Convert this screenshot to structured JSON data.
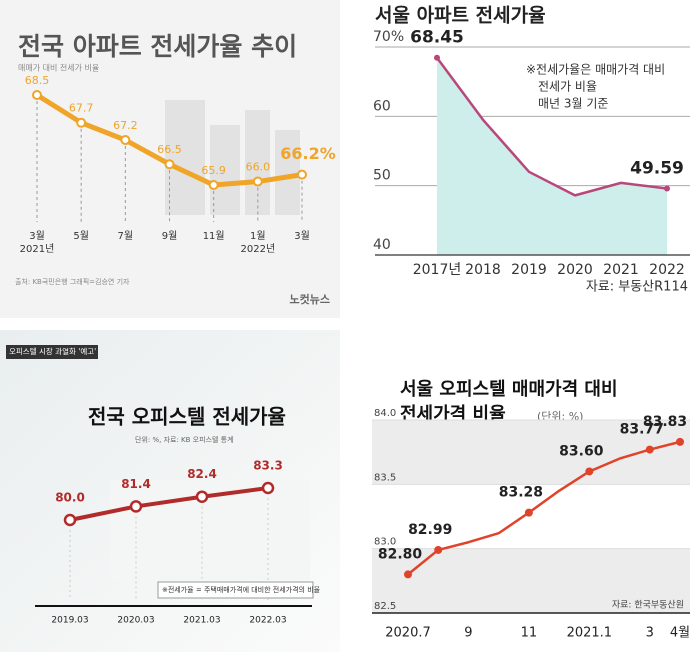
{
  "chart_data": [
    {
      "type": "line",
      "title": "전국 아파트 전세가율 추이",
      "subtitle": "매매가 대비 전세가 비율",
      "categories": [
        "3월",
        "5월",
        "7월",
        "9월",
        "11월",
        "1월",
        "3월"
      ],
      "category_years": [
        "2021년",
        null,
        null,
        null,
        null,
        "2022년",
        null
      ],
      "values": [
        68.5,
        67.7,
        67.2,
        66.5,
        65.9,
        66.0,
        66.2
      ],
      "value_labels": [
        "68.5",
        "67.7",
        "67.2",
        "66.5",
        "65.9",
        "66.0",
        "66.2%"
      ],
      "color": "#f0a428",
      "source": "출처: KB국민은행  그래픽=김승연 기자",
      "brand": "노컷뉴스"
    },
    {
      "type": "area",
      "title": "서울 아파트 전세가율",
      "categories": [
        "2017년",
        "2018",
        "2019",
        "2020",
        "2021",
        "2022"
      ],
      "values": [
        68.45,
        59.5,
        52.0,
        48.6,
        50.4,
        49.59
      ],
      "value_labels": [
        "68.45",
        null,
        null,
        null,
        null,
        "49.59"
      ],
      "ylim": [
        40,
        70
      ],
      "yticks": [
        40,
        50,
        60,
        {
          "value": 70,
          "label": "70%"
        }
      ],
      "grid": true,
      "color": "#b8487c",
      "fill": "#cdeeea",
      "annotation": [
        "※전세가율은 매매가격 대비",
        "전세가 비율",
        "매년 3월 기준"
      ],
      "source": "자료: 부동산R114"
    },
    {
      "type": "line",
      "title": "전국 오피스텔 전세가율",
      "badge": "오피스텔 시장 과열화 '예고'",
      "subtitle": "단위: %, 자료: KB 오피스텔 통계",
      "categories": [
        "2019.03",
        "2020.03",
        "2021.03",
        "2022.03"
      ],
      "values": [
        80.0,
        81.4,
        82.4,
        83.3
      ],
      "value_labels": [
        "80.0",
        "81.4",
        "82.4",
        "83.3"
      ],
      "color": "#b22b2b",
      "note": "※전세가율 = 주택매매가격에 대비한 전세가격의 비율"
    },
    {
      "type": "line",
      "title": [
        "서울 오피스텔 매매가격 대비",
        "전세가격 비율"
      ],
      "subtitle": "(단위: %)",
      "categories": [
        "2020.7",
        null,
        "9",
        null,
        "11",
        null,
        "2021.1",
        null,
        "3",
        "4월"
      ],
      "values": [
        82.8,
        82.99,
        83.05,
        83.12,
        83.28,
        83.45,
        83.6,
        83.7,
        83.77,
        83.83
      ],
      "value_labels": [
        "82.80",
        "82.99",
        null,
        null,
        "83.28",
        null,
        "83.60",
        null,
        "83.77",
        "83.83"
      ],
      "ylim": [
        82.5,
        84.0
      ],
      "yticks": [
        82.5,
        {
          "value": 83.0,
          "label": "83.0"
        },
        83.5,
        {
          "value": 84.0,
          "label": "84.0"
        }
      ],
      "color": "#e0432a",
      "source": "자료: 한국부동산원"
    }
  ]
}
